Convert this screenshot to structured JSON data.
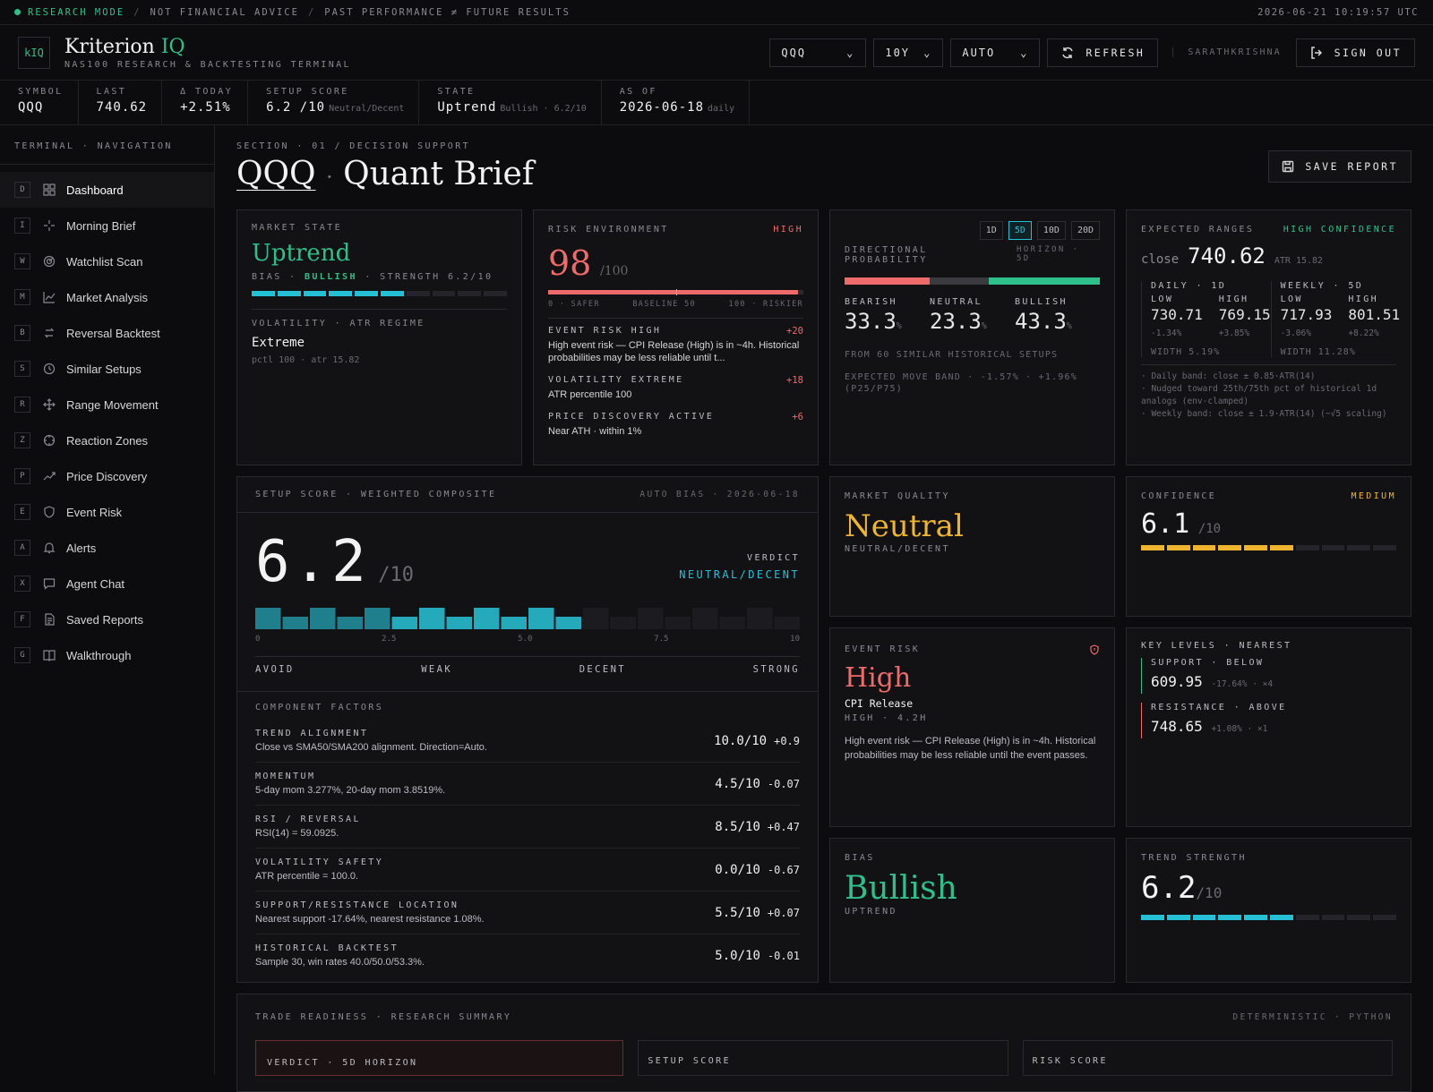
{
  "topbar": {
    "mode": "RESEARCH MODE",
    "note1": "NOT FINANCIAL ADVICE",
    "note2": "PAST PERFORMANCE ≠ FUTURE RESULTS",
    "time": "2026-06-21 10:19:57 UTC"
  },
  "header": {
    "logo": "kIQ",
    "brand_main": "Kriterion",
    "brand_accent": "IQ",
    "subtitle": "NAS100 RESEARCH & BACKTESTING TERMINAL",
    "symbol_select": "QQQ",
    "period_select": "10Y",
    "mode_select": "AUTO",
    "refresh": "REFRESH",
    "user": "SARATHKRISHNA",
    "signout": "SIGN OUT"
  },
  "stats": [
    {
      "label": "SYMBOL",
      "value": "QQQ",
      "note": ""
    },
    {
      "label": "LAST",
      "value": "740.62",
      "note": ""
    },
    {
      "label": "Δ TODAY",
      "value": "+2.51%",
      "note": ""
    },
    {
      "label": "SETUP SCORE",
      "value": "6.2 /10",
      "note": "Neutral/Decent"
    },
    {
      "label": "STATE",
      "value": "Uptrend",
      "note": "Bullish · 6.2/10"
    },
    {
      "label": "AS OF",
      "value": "2026-06-18",
      "note": "daily"
    }
  ],
  "sidebar": {
    "heading": "TERMINAL · NAVIGATION",
    "items": [
      {
        "key": "D",
        "label": "Dashboard",
        "icon": "grid-icon"
      },
      {
        "key": "I",
        "label": "Morning Brief",
        "icon": "sparkle-icon"
      },
      {
        "key": "W",
        "label": "Watchlist Scan",
        "icon": "radar-icon"
      },
      {
        "key": "M",
        "label": "Market Analysis",
        "icon": "chart-icon"
      },
      {
        "key": "B",
        "label": "Reversal Backtest",
        "icon": "reverse-icon"
      },
      {
        "key": "S",
        "label": "Similar Setups",
        "icon": "history-icon"
      },
      {
        "key": "R",
        "label": "Range Movement",
        "icon": "move-icon"
      },
      {
        "key": "Z",
        "label": "Reaction Zones",
        "icon": "crosshair-icon"
      },
      {
        "key": "P",
        "label": "Price Discovery",
        "icon": "trend-icon"
      },
      {
        "key": "E",
        "label": "Event Risk",
        "icon": "shield-icon"
      },
      {
        "key": "A",
        "label": "Alerts",
        "icon": "bell-icon"
      },
      {
        "key": "X",
        "label": "Agent Chat",
        "icon": "chat-icon"
      },
      {
        "key": "F",
        "label": "Saved Reports",
        "icon": "doc-icon"
      },
      {
        "key": "G",
        "label": "Walkthrough",
        "icon": "book-icon"
      }
    ]
  },
  "page": {
    "section": "SECTION · 01 / DECISION SUPPORT",
    "symbol": "QQQ",
    "title": "Quant Brief",
    "save": "SAVE REPORT"
  },
  "market_state": {
    "label": "MARKET STATE",
    "value": "Uptrend",
    "bias_label": "BIAS",
    "bias": "BULLISH",
    "strength": "STRENGTH 6.2/10",
    "strength_fill": 0.6,
    "vol_label": "VOLATILITY · ATR REGIME",
    "vol_value": "Extreme",
    "vol_note": "pctl 100 · atr 15.82"
  },
  "risk_env": {
    "label": "RISK ENVIRONMENT",
    "badge": "HIGH",
    "score": "98",
    "of": "/100",
    "fill": 0.98,
    "scale_low": "0 · SAFER",
    "scale_mid": "BASELINE 50",
    "scale_high": "100 · RISKIER",
    "items": [
      {
        "title": "EVENT RISK HIGH",
        "delta": "+20",
        "desc": "High event risk — CPI Release (High) is in ~4h. Historical probabilities may be less reliable until t..."
      },
      {
        "title": "VOLATILITY EXTREME",
        "delta": "+18",
        "desc": "ATR percentile 100"
      },
      {
        "title": "PRICE DISCOVERY ACTIVE",
        "delta": "+6",
        "desc": "Near ATH · within 1%"
      }
    ]
  },
  "direction": {
    "tabs": [
      "1D",
      "5D",
      "10D",
      "20D"
    ],
    "active_tab": "5D",
    "label": "DIRECTIONAL PROBABILITY",
    "horizon": "HORIZON · 5D",
    "bearish_label": "BEARISH",
    "bearish": "33.3",
    "neutral_label": "NEUTRAL",
    "neutral": "23.3",
    "bullish_label": "BULLISH",
    "bullish": "43.3",
    "pct": "%",
    "bearish_frac": 0.333,
    "neutral_frac": 0.233,
    "bullish_frac": 0.433,
    "note1": "FROM 60 SIMILAR HISTORICAL SETUPS",
    "note2": "EXPECTED MOVE BAND · -1.57% · +1.96%",
    "note3": "(P25/P75)"
  },
  "ranges": {
    "label": "EXPECTED RANGES",
    "badge": "HIGH CONFIDENCE",
    "close_label": "close",
    "close": "740.62",
    "atr": "ATR 15.82",
    "daily": {
      "label": "DAILY · 1D",
      "low_label": "LOW",
      "high_label": "HIGH",
      "low": "730.71",
      "high": "769.15",
      "low_pct": "-1.34%",
      "high_pct": "+3.85%",
      "width": "WIDTH 5.19%"
    },
    "weekly": {
      "label": "WEEKLY · 5D",
      "low_label": "LOW",
      "high_label": "HIGH",
      "low": "717.93",
      "high": "801.51",
      "low_pct": "-3.06%",
      "high_pct": "+8.22%",
      "width": "WIDTH 11.28%"
    },
    "notes": [
      "· Daily band: close ± 0.85·ATR(14)",
      "· Nudged toward 25th/75th pct of historical 1d analogs (env-clamped)",
      "· Weekly band: close ± 1.9·ATR(14) (~√5 scaling)"
    ]
  },
  "setup": {
    "label": "SETUP SCORE · WEIGHTED COMPOSITE",
    "auto": "AUTO BIAS · 2026-06-18",
    "score": "6.2",
    "of": "/10",
    "score_value": 6.2,
    "verdict_label": "VERDICT",
    "verdict": "NEUTRAL/DECENT",
    "ticks": [
      "0",
      "2.5",
      "5.0",
      "7.5",
      "10"
    ],
    "zones": [
      "AVOID",
      "WEAK",
      "DECENT",
      "STRONG"
    ],
    "factors_label": "COMPONENT FACTORS",
    "factors": [
      {
        "name": "TREND ALIGNMENT",
        "desc": "Close vs SMA50/SMA200 alignment. Direction=Auto.",
        "score": "10.0/10",
        "delta": "+0.9"
      },
      {
        "name": "MOMENTUM",
        "desc": "5-day mom 3.277%, 20-day mom 3.8519%.",
        "score": "4.5/10",
        "delta": "-0.07"
      },
      {
        "name": "RSI / REVERSAL",
        "desc": "RSI(14) = 59.0925.",
        "score": "8.5/10",
        "delta": "+0.47"
      },
      {
        "name": "VOLATILITY SAFETY",
        "desc": "ATR percentile = 100.0.",
        "score": "0.0/10",
        "delta": "-0.67"
      },
      {
        "name": "SUPPORT/RESISTANCE LOCATION",
        "desc": "Nearest support -17.64%, nearest resistance 1.08%.",
        "score": "5.5/10",
        "delta": "+0.07"
      },
      {
        "name": "HISTORICAL BACKTEST",
        "desc": "Sample 30, win rates 40.0/50.0/53.3%.",
        "score": "5.0/10",
        "delta": "-0.01"
      }
    ]
  },
  "quality": {
    "label": "MARKET QUALITY",
    "value": "Neutral",
    "sub": "NEUTRAL/DECENT"
  },
  "confidence": {
    "label": "CONFIDENCE",
    "badge": "MEDIUM",
    "value": "6.1",
    "of": "/10",
    "fill": 0.61
  },
  "event_risk": {
    "label": "EVENT RISK",
    "value": "High",
    "event": "CPI Release",
    "meta": "HIGH · 4.2H",
    "desc": "High event risk — CPI Release (High) is in ~4h. Historical probabilities may be less reliable until the event passes."
  },
  "key_levels": {
    "label": "KEY LEVELS · NEAREST",
    "support_label": "SUPPORT · BELOW",
    "support": "609.95",
    "support_note": "-17.64% · ×4",
    "resist_label": "RESISTANCE · ABOVE",
    "resist": "748.65",
    "resist_note": "+1.08% · ×1"
  },
  "bias": {
    "label": "BIAS",
    "value": "Bullish",
    "sub": "UPTREND"
  },
  "trend": {
    "label": "TREND STRENGTH",
    "value": "6.2",
    "of": "/10",
    "fill": 0.6
  },
  "readiness": {
    "label": "TRADE READINESS · RESEARCH SUMMARY",
    "tag": "DETERMINISTIC · PYTHON",
    "verdict": "VERDICT · 5D HORIZON",
    "setup": "SETUP SCORE",
    "risk": "RISK SCORE"
  },
  "colors": {
    "green": "#2ec08a",
    "red": "#ef6b6b",
    "cyan": "#25c0d6",
    "amber": "#f0b52e"
  }
}
